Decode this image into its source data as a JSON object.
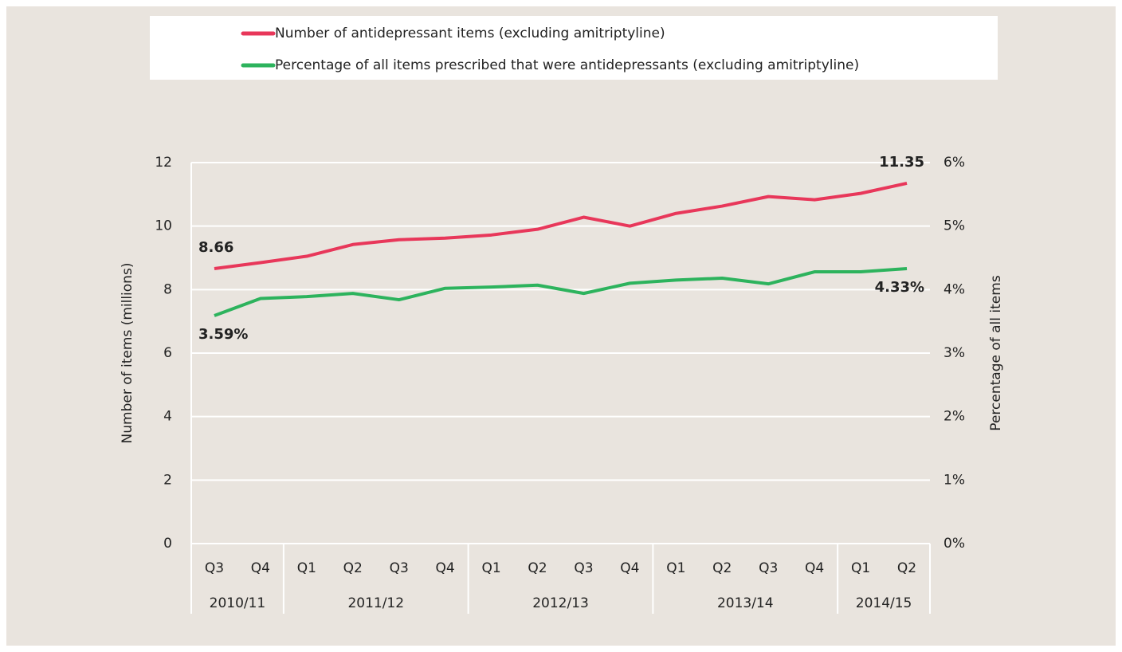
{
  "chart_data": {
    "type": "line",
    "y_label": "Number of items (millions)",
    "y2_label": "Percentage of all items",
    "categories": [
      "Q3",
      "Q4",
      "Q1",
      "Q2",
      "Q3",
      "Q4",
      "Q1",
      "Q2",
      "Q3",
      "Q4",
      "Q1",
      "Q2",
      "Q3",
      "Q4",
      "Q1",
      "Q2"
    ],
    "groups": [
      {
        "label": "2010/11",
        "count": 2
      },
      {
        "label": "2011/12",
        "count": 4
      },
      {
        "label": "2012/13",
        "count": 4
      },
      {
        "label": "2013/14",
        "count": 4
      },
      {
        "label": "2014/15",
        "count": 2
      }
    ],
    "series": [
      {
        "name": "Number of antidepressant items (excluding amitriptyline)",
        "color": "#e8375a",
        "values": [
          8.66,
          8.85,
          9.05,
          9.42,
          9.57,
          9.62,
          9.72,
          9.9,
          10.28,
          10.0,
          10.4,
          10.63,
          10.93,
          10.83,
          11.03,
          11.35
        ],
        "value_labels": [
          "8.66",
          null,
          null,
          null,
          null,
          null,
          null,
          null,
          null,
          null,
          null,
          null,
          null,
          null,
          null,
          "11.35"
        ]
      },
      {
        "name": "Percentage of all items prescribed that were antidepressants (excluding amitriptyline)",
        "color": "#2db35d",
        "axis": "y2",
        "values": [
          3.59,
          3.86,
          3.89,
          3.94,
          3.84,
          4.02,
          4.04,
          4.07,
          3.94,
          4.1,
          4.15,
          4.18,
          4.09,
          4.28,
          4.28,
          4.33
        ],
        "value_labels": [
          "3.59%",
          null,
          null,
          null,
          null,
          null,
          null,
          null,
          null,
          null,
          null,
          null,
          null,
          null,
          null,
          "4.33%"
        ]
      }
    ],
    "ylim": [
      0,
      12
    ],
    "yticks": [
      0,
      2,
      4,
      6,
      8,
      10,
      12
    ],
    "y2lim": [
      0,
      6
    ],
    "y2ticks": [
      {
        "value": 0,
        "label": "0%"
      },
      {
        "value": 1,
        "label": "1%"
      },
      {
        "value": 2,
        "label": "2%"
      },
      {
        "value": 3,
        "label": "3%"
      },
      {
        "value": 4,
        "label": "4%"
      },
      {
        "value": 5,
        "label": "5%"
      },
      {
        "value": 6,
        "label": "6%"
      }
    ],
    "grid": true,
    "legend": "top"
  }
}
